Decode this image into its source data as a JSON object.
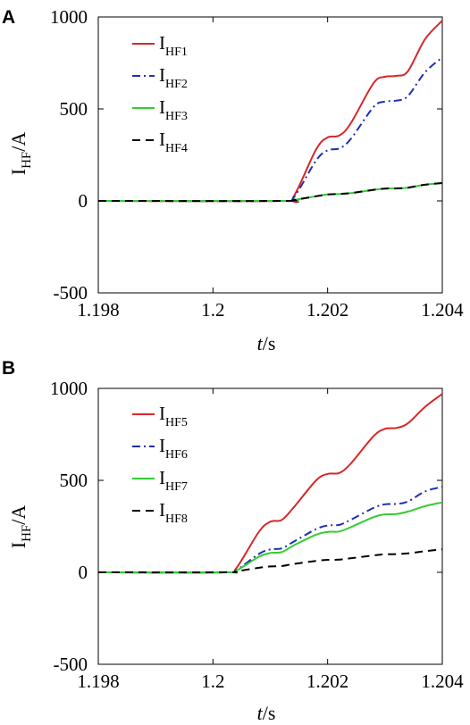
{
  "chart_data": [
    {
      "panel_label": "A",
      "type": "line",
      "xlabel_italic": "t",
      "xlabel_rest": "/s",
      "ylabel_main": "I",
      "ylabel_sub": "HF",
      "ylabel_rest": "/A",
      "xlim": [
        1.198,
        1.204
      ],
      "ylim": [
        -500,
        1000
      ],
      "x_ticks": [
        "1.198",
        "1.2",
        "1.202",
        "1.204"
      ],
      "x_tick_values": [
        1.198,
        1.2,
        1.202,
        1.204
      ],
      "y_ticks": [
        "1000",
        "500",
        "0",
        "-500"
      ],
      "y_tick_values": [
        1000,
        500,
        0,
        -500
      ],
      "legend_position": "top-left",
      "series": [
        {
          "name_main": "I",
          "name_sub": "HF1",
          "color": "#d62728",
          "dash": "solid",
          "x": [
            1.198,
            1.2012,
            1.2014,
            1.2018,
            1.202,
            1.2022,
            1.2024,
            1.2028,
            1.203,
            1.2032,
            1.2034,
            1.2037,
            1.204
          ],
          "values": [
            0,
            0,
            20,
            280,
            345,
            355,
            420,
            640,
            675,
            680,
            705,
            880,
            980
          ]
        },
        {
          "name_main": "I",
          "name_sub": "HF2",
          "color": "#1f2fb0",
          "dash": "dashdot",
          "x": [
            1.198,
            1.2012,
            1.2014,
            1.2018,
            1.202,
            1.2022,
            1.2024,
            1.2028,
            1.203,
            1.2032,
            1.2034,
            1.2037,
            1.204
          ],
          "values": [
            0,
            0,
            15,
            220,
            275,
            285,
            335,
            510,
            540,
            545,
            570,
            700,
            780
          ]
        },
        {
          "name_main": "I",
          "name_sub": "HF3",
          "color": "#33cc33",
          "dash": "solid",
          "x": [
            1.198,
            1.2012,
            1.2014,
            1.2018,
            1.202,
            1.2022,
            1.2024,
            1.2028,
            1.203,
            1.2032,
            1.2034,
            1.2037,
            1.204
          ],
          "values": [
            0,
            0,
            5,
            25,
            35,
            38,
            42,
            60,
            67,
            68,
            72,
            88,
            97
          ]
        },
        {
          "name_main": "I",
          "name_sub": "HF4",
          "color": "#000000",
          "dash": "dashed",
          "x": [
            1.198,
            1.2012,
            1.2014,
            1.2018,
            1.202,
            1.2022,
            1.2024,
            1.2028,
            1.203,
            1.2032,
            1.2034,
            1.2037,
            1.204
          ],
          "values": [
            0,
            0,
            5,
            25,
            35,
            38,
            42,
            60,
            67,
            68,
            72,
            88,
            97
          ]
        }
      ]
    },
    {
      "panel_label": "B",
      "type": "line",
      "xlabel_italic": "t",
      "xlabel_rest": "/s",
      "ylabel_main": "I",
      "ylabel_sub": "HF",
      "ylabel_rest": "/A",
      "xlim": [
        1.198,
        1.204
      ],
      "ylim": [
        -500,
        1000
      ],
      "x_ticks": [
        "1.198",
        "1.2",
        "1.202",
        "1.204"
      ],
      "x_tick_values": [
        1.198,
        1.2,
        1.202,
        1.204
      ],
      "y_ticks": [
        "1000",
        "500",
        "0",
        "-500"
      ],
      "y_tick_values": [
        1000,
        500,
        0,
        -500
      ],
      "legend_position": "top-left",
      "series": [
        {
          "name_main": "I",
          "name_sub": "HF5",
          "color": "#d62728",
          "dash": "solid",
          "x": [
            1.198,
            1.2002,
            1.2004,
            1.2008,
            1.201,
            1.2012,
            1.2014,
            1.2018,
            1.202,
            1.2022,
            1.2024,
            1.2028,
            1.203,
            1.2032,
            1.2034,
            1.2037,
            1.204
          ],
          "values": [
            0,
            0,
            20,
            220,
            275,
            285,
            350,
            500,
            535,
            540,
            590,
            740,
            780,
            785,
            810,
            900,
            970
          ]
        },
        {
          "name_main": "I",
          "name_sub": "HF6",
          "color": "#1f2fb0",
          "dash": "dashdot",
          "x": [
            1.198,
            1.2002,
            1.2004,
            1.2008,
            1.201,
            1.2012,
            1.2014,
            1.2018,
            1.202,
            1.2022,
            1.2024,
            1.2028,
            1.203,
            1.2032,
            1.2034,
            1.2037,
            1.204
          ],
          "values": [
            0,
            0,
            10,
            100,
            125,
            130,
            165,
            235,
            255,
            258,
            285,
            350,
            370,
            372,
            385,
            440,
            465
          ]
        },
        {
          "name_main": "I",
          "name_sub": "HF7",
          "color": "#33cc33",
          "dash": "solid",
          "x": [
            1.198,
            1.2002,
            1.2004,
            1.2008,
            1.201,
            1.2012,
            1.2014,
            1.2018,
            1.202,
            1.2022,
            1.2024,
            1.2028,
            1.203,
            1.2032,
            1.2034,
            1.2037,
            1.204
          ],
          "values": [
            0,
            0,
            8,
            85,
            105,
            110,
            145,
            205,
            220,
            222,
            245,
            300,
            315,
            317,
            330,
            360,
            380
          ]
        },
        {
          "name_main": "I",
          "name_sub": "HF8",
          "color": "#000000",
          "dash": "dashed",
          "x": [
            1.198,
            1.2002,
            1.2004,
            1.2008,
            1.201,
            1.2012,
            1.2014,
            1.2018,
            1.202,
            1.2022,
            1.2024,
            1.2028,
            1.203,
            1.2032,
            1.2034,
            1.2037,
            1.204
          ],
          "values": [
            0,
            0,
            5,
            25,
            32,
            34,
            45,
            62,
            68,
            69,
            76,
            92,
            98,
            99,
            103,
            115,
            125
          ]
        }
      ]
    }
  ]
}
